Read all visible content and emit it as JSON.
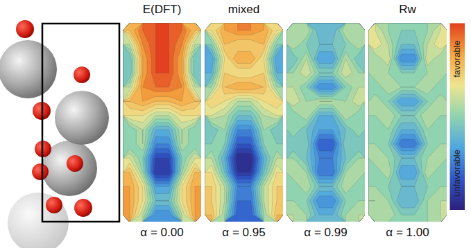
{
  "chart_data": {
    "type": "heatmap",
    "color_range": [
      0,
      1
    ],
    "color_labels": {
      "high": "favorable",
      "low": "unfavorable"
    },
    "panels": [
      {
        "title": "E(DFT)",
        "xlabel": "α = 0.00",
        "cells": [
          [
            0.8,
            0.95,
            1,
            1,
            0.95,
            0.8
          ],
          [
            0.6,
            0.9,
            1,
            1,
            0.9,
            0.6
          ],
          [
            0.45,
            0.85,
            1,
            1,
            0.85,
            0.45
          ],
          [
            0.45,
            0.85,
            1,
            1,
            0.85,
            0.45
          ],
          [
            0.6,
            0.9,
            0.95,
            0.95,
            0.9,
            0.6
          ],
          [
            0.8,
            0.85,
            0.8,
            0.8,
            0.85,
            0.8
          ],
          [
            0.7,
            0.7,
            0.6,
            0.6,
            0.7,
            0.7
          ],
          [
            0.5,
            0.6,
            0.4,
            0.4,
            0.6,
            0.5
          ],
          [
            0.5,
            0.6,
            0.3,
            0.3,
            0.6,
            0.5
          ],
          [
            0.65,
            0.5,
            0.15,
            0.15,
            0.5,
            0.65
          ],
          [
            0.8,
            0.55,
            0.1,
            0.1,
            0.55,
            0.8
          ],
          [
            0.85,
            0.7,
            0.35,
            0.35,
            0.7,
            0.85
          ],
          [
            0.85,
            0.7,
            0.45,
            0.45,
            0.7,
            0.85
          ],
          [
            0.85,
            0.6,
            0.3,
            0.3,
            0.6,
            0.85
          ]
        ]
      },
      {
        "title": "mixed",
        "xlabel": "α = 0.95",
        "cells": [
          [
            0.7,
            0.85,
            0.9,
            0.9,
            0.85,
            0.7
          ],
          [
            0.5,
            0.8,
            0.75,
            0.75,
            0.8,
            0.5
          ],
          [
            0.35,
            0.7,
            0.85,
            0.85,
            0.7,
            0.35
          ],
          [
            0.4,
            0.75,
            0.7,
            0.7,
            0.75,
            0.4
          ],
          [
            0.55,
            0.8,
            0.85,
            0.85,
            0.8,
            0.55
          ],
          [
            0.75,
            0.7,
            0.6,
            0.6,
            0.7,
            0.75
          ],
          [
            0.65,
            0.6,
            0.45,
            0.45,
            0.6,
            0.65
          ],
          [
            0.45,
            0.55,
            0.3,
            0.3,
            0.55,
            0.45
          ],
          [
            0.5,
            0.5,
            0.2,
            0.2,
            0.5,
            0.5
          ],
          [
            0.6,
            0.4,
            0.05,
            0.05,
            0.4,
            0.6
          ],
          [
            0.7,
            0.45,
            0.1,
            0.1,
            0.45,
            0.7
          ],
          [
            0.75,
            0.6,
            0.3,
            0.3,
            0.6,
            0.75
          ],
          [
            0.75,
            0.6,
            0.25,
            0.25,
            0.6,
            0.75
          ],
          [
            0.8,
            0.55,
            0.2,
            0.2,
            0.55,
            0.8
          ]
        ]
      },
      {
        "xlabel": "α = 0.99",
        "cells": [
          [
            0.55,
            0.6,
            0.4,
            0.4,
            0.6,
            0.55
          ],
          [
            0.6,
            0.5,
            0.45,
            0.45,
            0.5,
            0.6
          ],
          [
            0.45,
            0.6,
            0.35,
            0.35,
            0.6,
            0.45
          ],
          [
            0.55,
            0.65,
            0.5,
            0.5,
            0.65,
            0.55
          ],
          [
            0.6,
            0.5,
            0.3,
            0.3,
            0.5,
            0.6
          ],
          [
            0.65,
            0.55,
            0.6,
            0.6,
            0.55,
            0.65
          ],
          [
            0.5,
            0.6,
            0.4,
            0.4,
            0.6,
            0.5
          ],
          [
            0.55,
            0.45,
            0.35,
            0.35,
            0.45,
            0.55
          ],
          [
            0.45,
            0.5,
            0.2,
            0.2,
            0.5,
            0.45
          ],
          [
            0.55,
            0.45,
            0.3,
            0.3,
            0.45,
            0.55
          ],
          [
            0.6,
            0.55,
            0.25,
            0.25,
            0.55,
            0.6
          ],
          [
            0.5,
            0.6,
            0.45,
            0.45,
            0.6,
            0.5
          ],
          [
            0.55,
            0.5,
            0.3,
            0.3,
            0.5,
            0.55
          ],
          [
            0.6,
            0.55,
            0.4,
            0.4,
            0.55,
            0.6
          ]
        ]
      },
      {
        "title": "Rw",
        "xlabel": "α = 1.00",
        "cells": [
          [
            0.65,
            0.55,
            0.5,
            0.5,
            0.55,
            0.65
          ],
          [
            0.7,
            0.6,
            0.45,
            0.45,
            0.6,
            0.7
          ],
          [
            0.55,
            0.65,
            0.3,
            0.3,
            0.65,
            0.55
          ],
          [
            0.6,
            0.55,
            0.5,
            0.5,
            0.55,
            0.6
          ],
          [
            0.5,
            0.6,
            0.55,
            0.55,
            0.6,
            0.5
          ],
          [
            0.6,
            0.5,
            0.35,
            0.35,
            0.5,
            0.6
          ],
          [
            0.55,
            0.6,
            0.5,
            0.5,
            0.6,
            0.55
          ],
          [
            0.5,
            0.55,
            0.4,
            0.4,
            0.55,
            0.5
          ],
          [
            0.55,
            0.5,
            0.25,
            0.25,
            0.5,
            0.55
          ],
          [
            0.6,
            0.55,
            0.45,
            0.45,
            0.55,
            0.6
          ],
          [
            0.5,
            0.6,
            0.35,
            0.35,
            0.6,
            0.5
          ],
          [
            0.55,
            0.5,
            0.45,
            0.45,
            0.5,
            0.55
          ],
          [
            0.6,
            0.55,
            0.4,
            0.4,
            0.55,
            0.6
          ],
          [
            0.55,
            0.6,
            0.5,
            0.5,
            0.55,
            0.6
          ]
        ]
      }
    ]
  }
}
